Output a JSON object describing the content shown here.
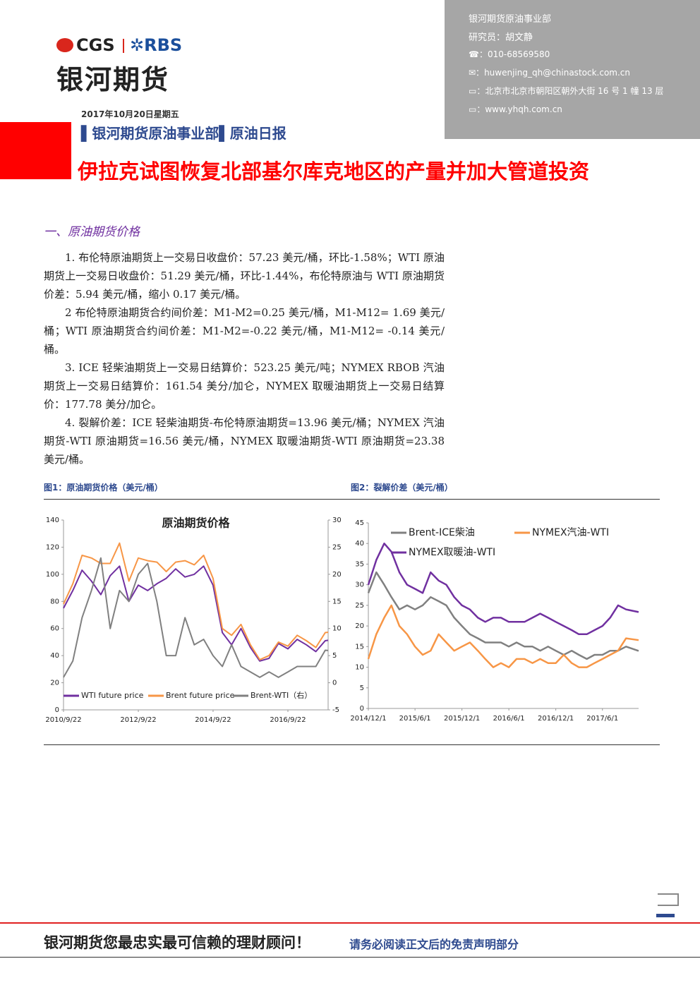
{
  "header": {
    "logo_cgs": "CGS",
    "logo_rbs": "RBS",
    "company": "银河期货",
    "contact": [
      "银河期货原油事业部",
      "研究员：胡文静",
      "010-68569580",
      "huwenjing_qh@chinastock.com.cn",
      "北京市北京市朝阳区朝外大街 16 号 1 幢 13 层",
      "www.yhqh.com.cn"
    ],
    "date": "2017年10月20日星期五",
    "department": "银河期货原油事业部",
    "report": "原油日报",
    "headline": "伊拉克试图恢复北部基尔库克地区的产量并加大管道投资"
  },
  "section": {
    "title": "一、原油期货价格",
    "paragraphs": [
      "1. 布伦特原油期货上一交易日收盘价：57.23 美元/桶，环比-1.58%；WTI 原油期货上一交易日收盘价：51.29 美元/桶，环比-1.44%，布伦特原油与 WTI 原油期货价差：5.94 美元/桶，缩小 0.17 美元/桶。",
      "2 布伦特原油期货合约间价差：M1-M2=0.25 美元/桶，M1-M12= 1.69 美元/桶；WTI 原油期货合约间价差：M1-M2=-0.22 美元/桶，M1-M12= -0.14 美元/桶。",
      "3. ICE 轻柴油期货上一交易日结算价：523.25 美元/吨；NYMEX RBOB 汽油期货上一交易日结算价：161.54 美分/加仑，NYMEX 取暖油期货上一交易日结算价：177.78 美分/加仑。",
      "4. 裂解价差：ICE 轻柴油期货-布伦特原油期货=13.96 美元/桶；NYMEX 汽油期货-WTI 原油期货=16.56 美元/桶，NYMEX 取暖油期货-WTI 原油期货=23.38 美元/桶。"
    ]
  },
  "figures": [
    "图1：原油期货价格（美元/桶）",
    "图2：裂解价差（美元/桶）"
  ],
  "chart_data": [
    {
      "type": "line",
      "title": "原油期货价格",
      "legend": "bottom",
      "x": [
        "2010/9/22",
        "2010/12/22",
        "2011/3/22",
        "2011/6/22",
        "2011/9/22",
        "2011/12/22",
        "2012/3/22",
        "2012/6/22",
        "2012/9/22",
        "2012/12/22",
        "2013/3/22",
        "2013/6/22",
        "2013/9/22",
        "2013/12/22",
        "2014/3/22",
        "2014/6/22",
        "2014/9/22",
        "2014/12/22",
        "2015/3/22",
        "2015/6/22",
        "2015/9/22",
        "2015/12/22",
        "2016/3/22",
        "2016/6/22",
        "2016/9/22",
        "2016/12/22",
        "2017/3/22",
        "2017/6/22",
        "2017/9/22",
        "2017/10/20"
      ],
      "xlim": [
        "2010/9/22",
        "2017/10/20"
      ],
      "xticks": [
        "2010/9/22",
        "2012/9/22",
        "2014/9/22",
        "2016/9/22"
      ],
      "ylim": [
        0,
        140
      ],
      "yticks": [
        0,
        20,
        40,
        60,
        80,
        100,
        120,
        140
      ],
      "y2lim": [
        -5,
        30
      ],
      "y2ticks": [
        -5,
        0,
        5,
        10,
        15,
        20,
        25,
        30
      ],
      "series": [
        {
          "name": "WTI future price",
          "color": "#7030a0",
          "values": [
            75,
            88,
            103,
            95,
            85,
            99,
            106,
            80,
            92,
            88,
            93,
            97,
            104,
            98,
            100,
            106,
            92,
            57,
            48,
            60,
            46,
            36,
            38,
            49,
            45,
            52,
            48,
            43,
            51,
            51.29
          ]
        },
        {
          "name": "Brent future price",
          "color": "#f79646",
          "values": [
            78,
            93,
            114,
            112,
            108,
            108,
            123,
            95,
            112,
            110,
            109,
            102,
            109,
            110,
            107,
            114,
            97,
            60,
            55,
            63,
            48,
            37,
            40,
            50,
            47,
            55,
            51,
            46,
            57,
            57.23
          ]
        },
        {
          "name": "Brent-WTI（右）",
          "color": "#808080",
          "axis": "y2",
          "values": [
            1,
            4,
            12,
            17,
            23,
            10,
            17,
            15,
            20,
            22,
            15,
            5,
            5,
            12,
            7,
            8,
            5,
            3,
            7,
            3,
            2,
            1,
            2,
            1,
            2,
            3,
            3,
            3,
            6,
            5.94
          ]
        }
      ]
    },
    {
      "type": "line",
      "legend": "top",
      "x": [
        "2014/12/1",
        "2015/1/1",
        "2015/2/1",
        "2015/3/1",
        "2015/4/1",
        "2015/5/1",
        "2015/6/1",
        "2015/7/1",
        "2015/8/1",
        "2015/9/1",
        "2015/10/1",
        "2015/11/1",
        "2015/12/1",
        "2016/1/1",
        "2016/2/1",
        "2016/3/1",
        "2016/4/1",
        "2016/5/1",
        "2016/6/1",
        "2016/7/1",
        "2016/8/1",
        "2016/9/1",
        "2016/10/1",
        "2016/11/1",
        "2016/12/1",
        "2017/1/1",
        "2017/2/1",
        "2017/3/1",
        "2017/4/1",
        "2017/5/1",
        "2017/6/1",
        "2017/7/1",
        "2017/8/1",
        "2017/9/1",
        "2017/10/20"
      ],
      "xlim": [
        "2014/12/1",
        "2017/10/20"
      ],
      "xticks": [
        "2014/12/1",
        "2015/6/1",
        "2015/12/1",
        "2016/6/1",
        "2016/12/1",
        "2017/6/1"
      ],
      "ylim": [
        0,
        45
      ],
      "yticks": [
        0,
        5,
        10,
        15,
        20,
        25,
        30,
        35,
        40,
        45
      ],
      "series": [
        {
          "name": "Brent-ICE柴油",
          "color": "#808080",
          "values": [
            28,
            33,
            30,
            27,
            24,
            25,
            24,
            25,
            27,
            26,
            25,
            22,
            20,
            18,
            17,
            16,
            16,
            16,
            15,
            16,
            15,
            15,
            14,
            15,
            14,
            13,
            14,
            13,
            12,
            13,
            13,
            14,
            14,
            15,
            13.96
          ]
        },
        {
          "name": "NYMEX汽油-WTI",
          "color": "#f79646",
          "values": [
            12,
            18,
            22,
            25,
            20,
            18,
            15,
            13,
            14,
            18,
            16,
            14,
            15,
            16,
            14,
            12,
            10,
            11,
            10,
            12,
            12,
            11,
            12,
            11,
            11,
            13,
            11,
            10,
            10,
            11,
            12,
            13,
            14,
            17,
            16.56
          ]
        },
        {
          "name": "NYMEX取暖油-WTI",
          "color": "#7030a0",
          "values": [
            30,
            36,
            40,
            38,
            33,
            30,
            29,
            28,
            33,
            31,
            30,
            27,
            25,
            24,
            22,
            21,
            22,
            22,
            21,
            21,
            21,
            22,
            23,
            22,
            21,
            20,
            19,
            18,
            18,
            19,
            20,
            22,
            25,
            24,
            23.38
          ]
        }
      ]
    }
  ],
  "footer": {
    "slogan": "银河期货您最忠实最可信赖的理财顾问！",
    "disclaimer": "请务必阅读正文后的免责声明部分"
  }
}
